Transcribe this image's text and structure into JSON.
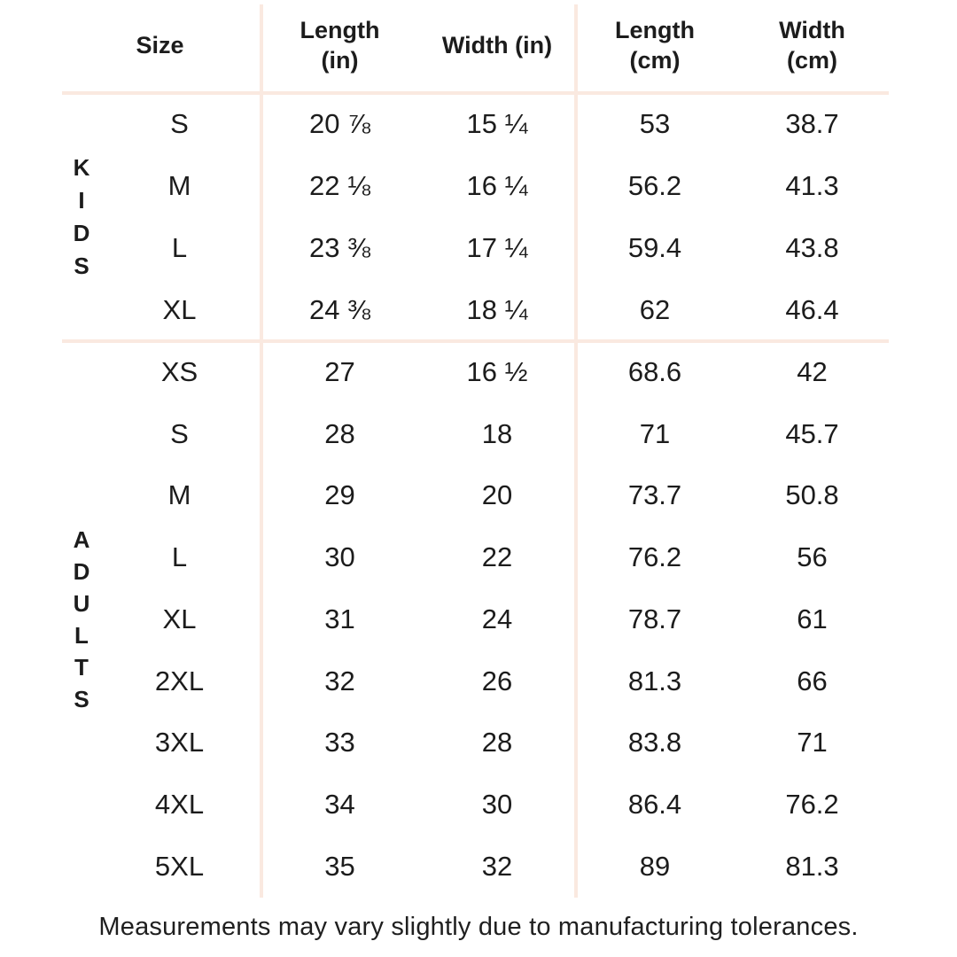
{
  "colors": {
    "background": "#ffffff",
    "text": "#1c1c1c",
    "divider": "#fae9e0"
  },
  "chart_data": {
    "type": "table",
    "columns": [
      "Size",
      "Length\n(in)",
      "Width (in)",
      "Length\n(cm)",
      "Width\n(cm)"
    ],
    "groups": [
      {
        "label": "KIDS",
        "rows": [
          {
            "size": "S",
            "length_in": "20 ⅞",
            "width_in": "15 ¼",
            "length_cm": "53",
            "width_cm": "38.7"
          },
          {
            "size": "M",
            "length_in": "22 ⅛",
            "width_in": "16 ¼",
            "length_cm": "56.2",
            "width_cm": "41.3"
          },
          {
            "size": "L",
            "length_in": "23 ⅜",
            "width_in": "17 ¼",
            "length_cm": "59.4",
            "width_cm": "43.8"
          },
          {
            "size": "XL",
            "length_in": "24 ⅜",
            "width_in": "18 ¼",
            "length_cm": "62",
            "width_cm": "46.4"
          }
        ]
      },
      {
        "label": "ADULTS",
        "rows": [
          {
            "size": "XS",
            "length_in": "27",
            "width_in": "16 ½",
            "length_cm": "68.6",
            "width_cm": "42"
          },
          {
            "size": "S",
            "length_in": "28",
            "width_in": "18",
            "length_cm": "71",
            "width_cm": "45.7"
          },
          {
            "size": "M",
            "length_in": "29",
            "width_in": "20",
            "length_cm": "73.7",
            "width_cm": "50.8"
          },
          {
            "size": "L",
            "length_in": "30",
            "width_in": "22",
            "length_cm": "76.2",
            "width_cm": "56"
          },
          {
            "size": "XL",
            "length_in": "31",
            "width_in": "24",
            "length_cm": "78.7",
            "width_cm": "61"
          },
          {
            "size": "2XL",
            "length_in": "32",
            "width_in": "26",
            "length_cm": "81.3",
            "width_cm": "66"
          },
          {
            "size": "3XL",
            "length_in": "33",
            "width_in": "28",
            "length_cm": "83.8",
            "width_cm": "71"
          },
          {
            "size": "4XL",
            "length_in": "34",
            "width_in": "30",
            "length_cm": "86.4",
            "width_cm": "76.2"
          },
          {
            "size": "5XL",
            "length_in": "35",
            "width_in": "32",
            "length_cm": "89",
            "width_cm": "81.3"
          }
        ]
      }
    ],
    "footnote": "Measurements may vary slightly due to manufacturing tolerances."
  }
}
